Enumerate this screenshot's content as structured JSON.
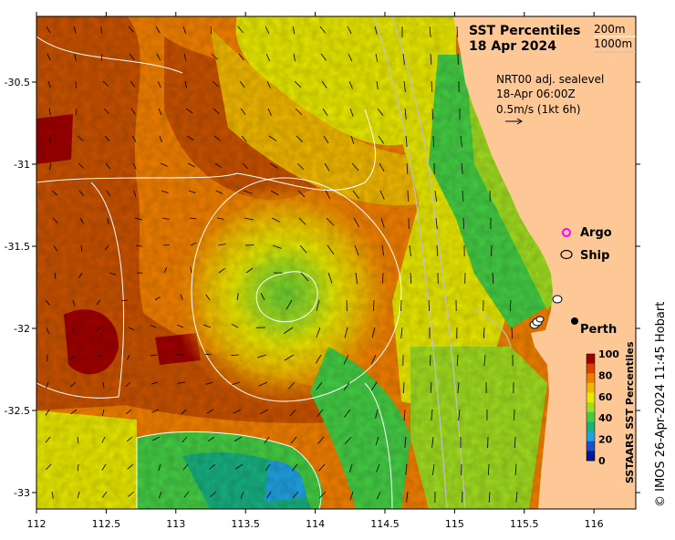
{
  "title": {
    "line1": "SST Percentiles",
    "line2": "18 Apr 2024"
  },
  "contours_legend": [
    "200m",
    "1000m"
  ],
  "info": {
    "line1": "NRT00 adj. sealevel",
    "line2": "18-Apr 06:00Z",
    "line3": "0.5m/s (1kt 6h)"
  },
  "legend": {
    "argo_label": "Argo",
    "ship_label": "Ship",
    "argo_color": "#ff00ff"
  },
  "place": {
    "name": "Perth"
  },
  "credit": "© IMOS 26-Apr-2024 11:45 Hobart",
  "colorbar": {
    "title": "SSTAARS SST Percentiles",
    "ticks": [
      "100",
      "80",
      "60",
      "40",
      "20",
      "0"
    ],
    "colors": [
      "#a00000",
      "#e04000",
      "#f07f00",
      "#f0b800",
      "#e8e800",
      "#a0dc20",
      "#44cc44",
      "#18b080",
      "#20a0e0",
      "#1850d0",
      "#001890"
    ]
  },
  "axes": {
    "x_ticks": [
      "112",
      "112.5",
      "113",
      "113.5",
      "114",
      "114.5",
      "115",
      "115.5",
      "116"
    ],
    "y_ticks": [
      "-30.5",
      "-31",
      "-31.5",
      "-32",
      "-32.5",
      "-33"
    ],
    "xlim": [
      112,
      116.3
    ],
    "ylim": [
      -33.1,
      -30.1
    ]
  },
  "colors": {
    "land": "#fdc896",
    "contour": "#ffffff",
    "contour_shelf": "#c0c0c0"
  }
}
